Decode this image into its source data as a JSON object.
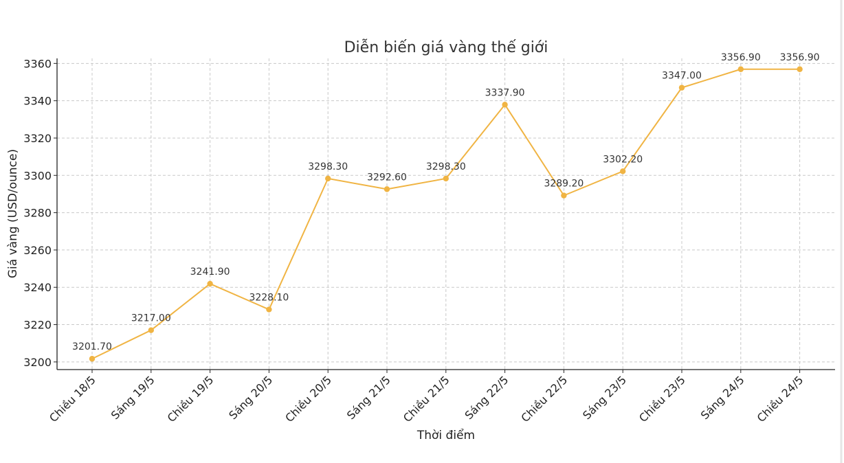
{
  "chart_data": {
    "type": "line",
    "title": "Diễn biến giá vàng thế giới",
    "xlabel": "Thời điểm",
    "ylabel": "Giá vàng (USD/ounce)",
    "categories": [
      "Chiều 18/5",
      "Sáng 19/5",
      "Chiều 19/5",
      "Sáng 20/5",
      "Chiều 20/5",
      "Sáng 21/5",
      "Chiều 21/5",
      "Sáng 22/5",
      "Chiều 22/5",
      "Sáng 23/5",
      "Chiều 23/5",
      "Sáng 24/5",
      "Chiều 24/5"
    ],
    "series": [
      {
        "values": [
          3201.7,
          3217.0,
          3241.9,
          3228.1,
          3298.3,
          3292.6,
          3298.3,
          3337.9,
          3289.2,
          3302.2,
          3347.0,
          3356.9,
          3356.9
        ],
        "labels": [
          "3201.70",
          "3217.00",
          "3241.90",
          "3228.10",
          "3298.30",
          "3292.60",
          "3298.30",
          "3337.90",
          "3289.20",
          "3302.20",
          "3347.00",
          "3356.90",
          "3356.90"
        ],
        "color": "#f0b443"
      }
    ],
    "yticks": [
      "3200",
      "3220",
      "3240",
      "3260",
      "3280",
      "3300",
      "3320",
      "3340",
      "3360"
    ],
    "ylim": [
      3195.9,
      3362.7
    ],
    "grid": true
  }
}
